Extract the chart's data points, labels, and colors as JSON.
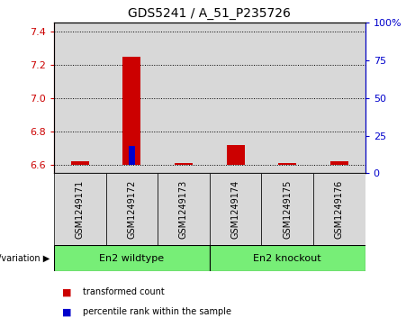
{
  "title": "GDS5241 / A_51_P235726",
  "samples": [
    "GSM1249171",
    "GSM1249172",
    "GSM1249173",
    "GSM1249174",
    "GSM1249175",
    "GSM1249176"
  ],
  "transformed_counts": [
    6.62,
    7.25,
    6.61,
    6.72,
    6.61,
    6.62
  ],
  "percentile_ranks": [
    2,
    18,
    2,
    5,
    3,
    3
  ],
  "baseline": 6.6,
  "ylim_left": [
    6.55,
    7.45
  ],
  "ylim_right": [
    0,
    100
  ],
  "yticks_left": [
    6.6,
    6.8,
    7.0,
    7.2,
    7.4
  ],
  "yticks_right": [
    0,
    25,
    50,
    75,
    100
  ],
  "groups": [
    {
      "label": "En2 wildtype",
      "start": 0,
      "end": 3,
      "color": "#77EE77"
    },
    {
      "label": "En2 knockout",
      "start": 3,
      "end": 6,
      "color": "#77EE77"
    }
  ],
  "bar_color_red": "#CC0000",
  "bar_color_blue": "#0000CC",
  "col_bg_color": "#D8D8D8",
  "legend_red": "transformed count",
  "legend_blue": "percentile rank within the sample",
  "genotype_label": "genotype/variation",
  "title_color": "#000000",
  "left_axis_color": "#CC0000",
  "right_axis_color": "#0000CC",
  "red_bar_width": 0.35,
  "blue_bar_width": 0.12
}
